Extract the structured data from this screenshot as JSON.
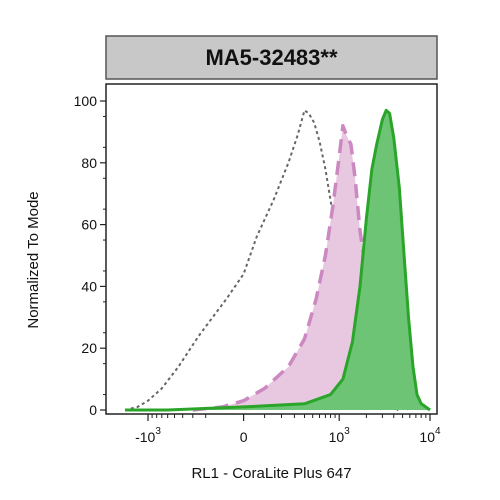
{
  "chart_data": {
    "type": "area",
    "title": "MA5-32483**",
    "xlabel": "RL1 - CoraLite Plus 647",
    "ylabel": "Normalized To Mode",
    "x_scale": "biexponential",
    "x_tick_labels": [
      {
        "value": -1000,
        "base": "-10",
        "exp": "3"
      },
      {
        "value": 0,
        "base": "0",
        "exp": ""
      },
      {
        "value": 1000,
        "base": "10",
        "exp": "3"
      },
      {
        "value": 10000,
        "base": "10",
        "exp": "4"
      }
    ],
    "ylim": [
      0,
      100
    ],
    "y_ticks": [
      0,
      20,
      40,
      60,
      80,
      100
    ],
    "grid": false,
    "legend": "none",
    "series": [
      {
        "style": "isotype",
        "fill": "none",
        "line_color": "#666666",
        "line_style": "dotted",
        "points": [
          [
            -1800,
            0
          ],
          [
            -1300,
            1
          ],
          [
            -1000,
            3
          ],
          [
            -700,
            7
          ],
          [
            -450,
            14
          ],
          [
            -250,
            24
          ],
          [
            -80,
            36
          ],
          [
            0,
            44
          ],
          [
            60,
            56
          ],
          [
            150,
            68
          ],
          [
            250,
            80
          ],
          [
            330,
            89
          ],
          [
            400,
            97
          ],
          [
            450,
            96
          ],
          [
            520,
            93
          ],
          [
            600,
            87
          ],
          [
            700,
            78
          ],
          [
            800,
            68
          ],
          [
            1000,
            50
          ],
          [
            1200,
            36
          ],
          [
            1500,
            22
          ],
          [
            1800,
            12
          ],
          [
            2200,
            6
          ],
          [
            2800,
            2
          ],
          [
            3500,
            1
          ],
          [
            4500,
            0
          ]
        ]
      },
      {
        "style": "control",
        "fill": "#e8c8e0",
        "line_color": "#cc88c0",
        "line_style": "dashed",
        "points": [
          [
            -300,
            0
          ],
          [
            -100,
            1
          ],
          [
            0,
            3
          ],
          [
            100,
            7
          ],
          [
            250,
            14
          ],
          [
            400,
            23
          ],
          [
            550,
            36
          ],
          [
            700,
            50
          ],
          [
            850,
            66
          ],
          [
            1000,
            82
          ],
          [
            1100,
            92
          ],
          [
            1200,
            89
          ],
          [
            1350,
            86
          ],
          [
            1500,
            75
          ],
          [
            1700,
            58
          ],
          [
            2000,
            44
          ],
          [
            2400,
            32
          ],
          [
            2800,
            24
          ],
          [
            3200,
            17
          ],
          [
            3700,
            11
          ],
          [
            4300,
            6
          ],
          [
            5000,
            2
          ],
          [
            6000,
            0
          ]
        ]
      },
      {
        "style": "antibody",
        "fill": "#6cc474",
        "line_color": "#2aa52a",
        "line_style": "solid",
        "points": [
          [
            -1800,
            0
          ],
          [
            -600,
            0
          ],
          [
            0,
            1
          ],
          [
            400,
            2
          ],
          [
            800,
            5
          ],
          [
            1100,
            10
          ],
          [
            1400,
            22
          ],
          [
            1700,
            40
          ],
          [
            2000,
            62
          ],
          [
            2300,
            78
          ],
          [
            2600,
            86
          ],
          [
            3000,
            94
          ],
          [
            3300,
            97
          ],
          [
            3600,
            96
          ],
          [
            4000,
            88
          ],
          [
            4600,
            72
          ],
          [
            5200,
            50
          ],
          [
            5800,
            30
          ],
          [
            6500,
            14
          ],
          [
            7200,
            5
          ],
          [
            8000,
            2
          ],
          [
            9000,
            1
          ],
          [
            10000,
            0
          ]
        ]
      }
    ]
  }
}
